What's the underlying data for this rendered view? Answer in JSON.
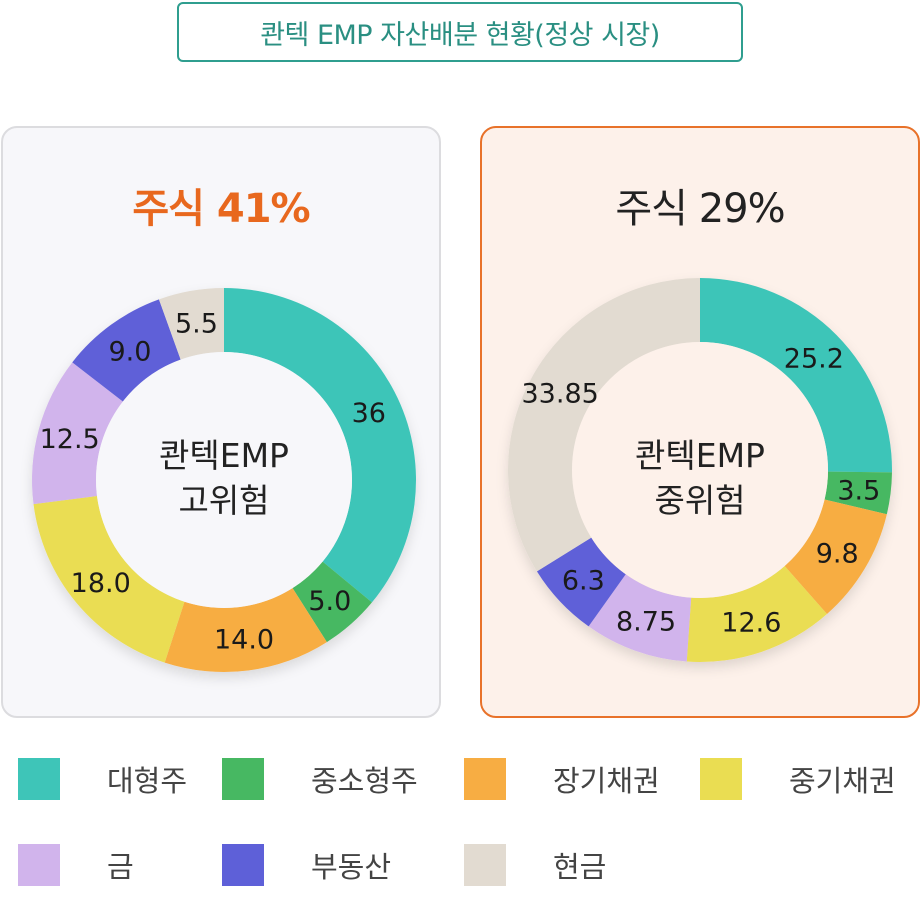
{
  "header": {
    "title": "콴텍 EMP 자산배분 현황(정상 시장)"
  },
  "colors": {
    "large_cap": "#3ec5b8",
    "small_mid_cap": "#47b862",
    "long_bond": "#f7ad43",
    "mid_bond": "#eadd52",
    "gold": "#d1b4ec",
    "real_estate": "#5e60d8",
    "cash": "#e2dbd1"
  },
  "legend": [
    {
      "label": "대형주",
      "color": "#3ec5b8"
    },
    {
      "label": "중소형주",
      "color": "#47b862"
    },
    {
      "label": "장기채권",
      "color": "#f7ad43"
    },
    {
      "label": "중기채권",
      "color": "#eadd52"
    },
    {
      "label": "금",
      "color": "#d1b4ec"
    },
    {
      "label": "부동산",
      "color": "#5e60d8"
    },
    {
      "label": "현금",
      "color": "#e2dbd1"
    }
  ],
  "chart_data": [
    {
      "type": "pie",
      "heading": "주식 41%",
      "center_label_line1": "콴텍EMP",
      "center_label_line2": "고위험",
      "slices": [
        {
          "label": "대형주",
          "value": 36,
          "display": "36",
          "color": "#3ec5b8"
        },
        {
          "label": "중소형주",
          "value": 5.0,
          "display": "5.0",
          "color": "#47b862"
        },
        {
          "label": "장기채권",
          "value": 14.0,
          "display": "14.0",
          "color": "#f7ad43"
        },
        {
          "label": "중기채권",
          "value": 18.0,
          "display": "18.0",
          "color": "#eadd52"
        },
        {
          "label": "금",
          "value": 12.5,
          "display": "12.5",
          "color": "#d1b4ec"
        },
        {
          "label": "부동산",
          "value": 9.0,
          "display": "9.0",
          "color": "#5e60d8"
        },
        {
          "label": "현금",
          "value": 5.5,
          "display": "5.5",
          "color": "#e2dbd1"
        }
      ]
    },
    {
      "type": "pie",
      "heading": "주식 29%",
      "center_label_line1": "콴텍EMP",
      "center_label_line2": "중위험",
      "slices": [
        {
          "label": "대형주",
          "value": 25.2,
          "display": "25.2",
          "color": "#3ec5b8"
        },
        {
          "label": "중소형주",
          "value": 3.5,
          "display": "3.5",
          "color": "#47b862"
        },
        {
          "label": "장기채권",
          "value": 9.8,
          "display": "9.8",
          "color": "#f7ad43"
        },
        {
          "label": "중기채권",
          "value": 12.6,
          "display": "12.6",
          "color": "#eadd52"
        },
        {
          "label": "금",
          "value": 8.75,
          "display": "8.75",
          "color": "#d1b4ec"
        },
        {
          "label": "부동산",
          "value": 6.3,
          "display": "6.3",
          "color": "#5e60d8"
        },
        {
          "label": "현금",
          "value": 33.85,
          "display": "33.85",
          "color": "#e2dbd1"
        }
      ]
    }
  ]
}
